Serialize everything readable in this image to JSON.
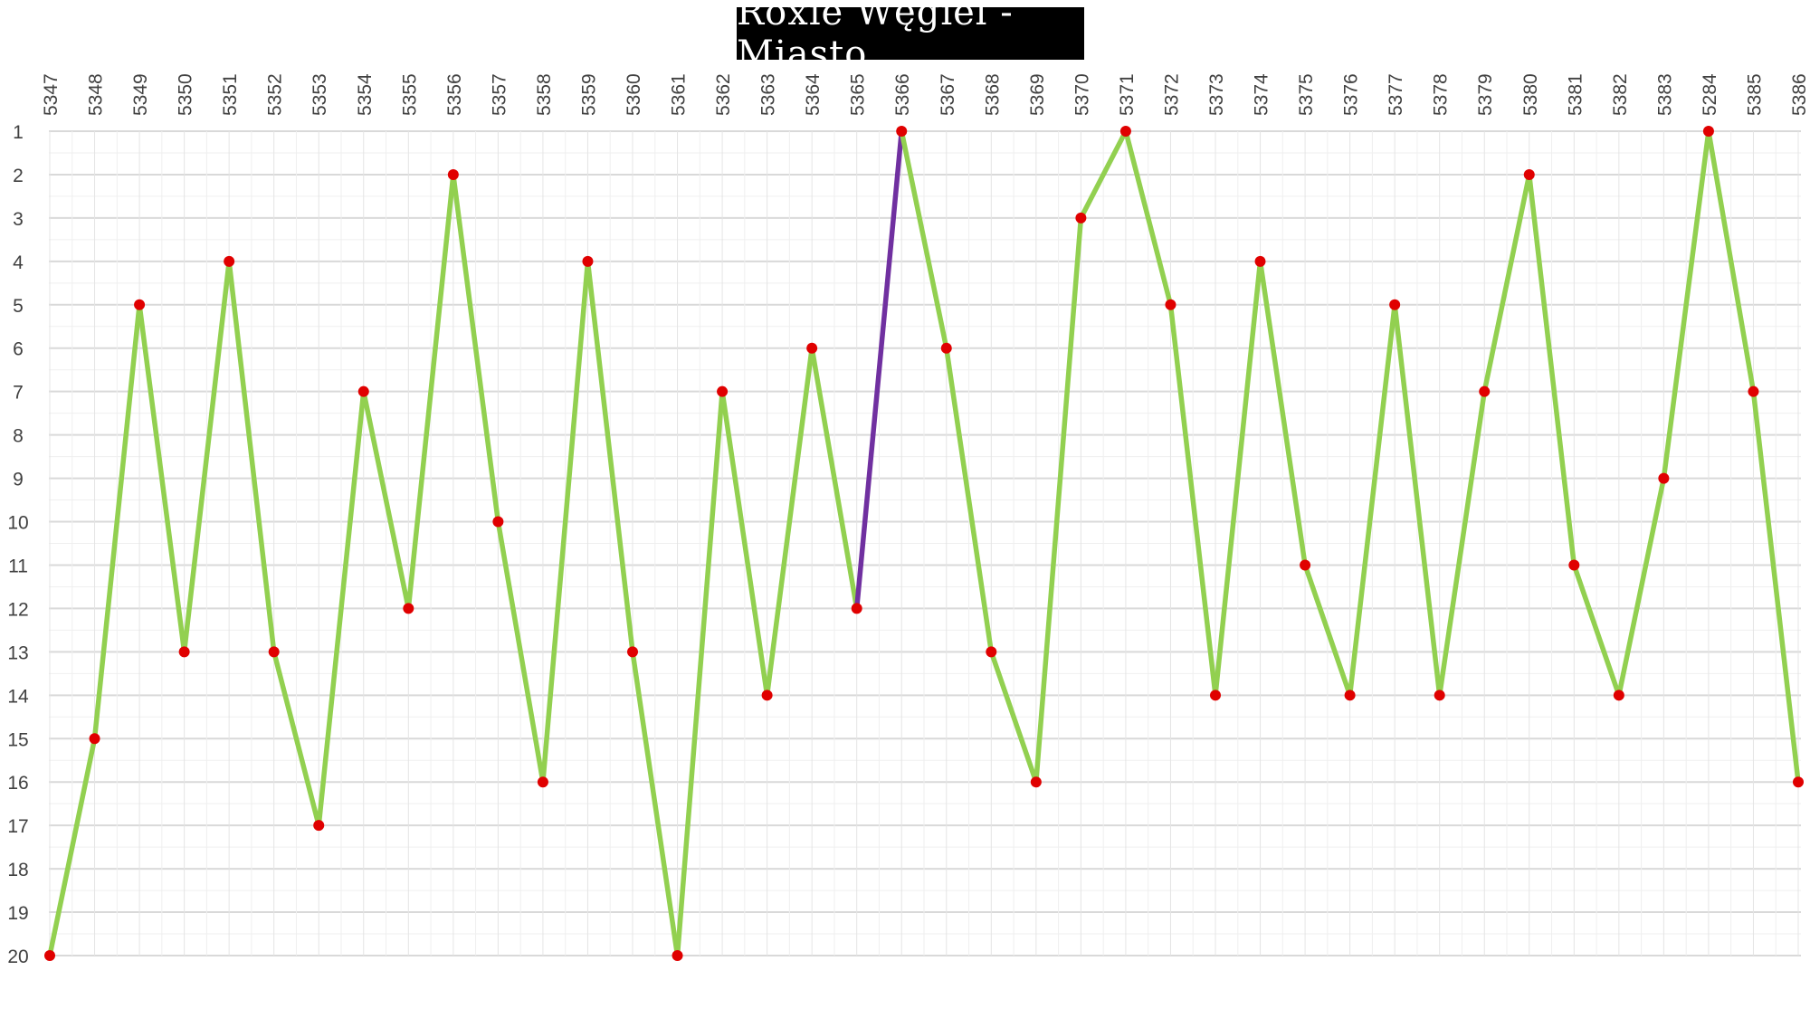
{
  "chart_data": {
    "type": "line",
    "title": "Roxie Węgiel - Miasto",
    "xlabel": "",
    "ylabel": "",
    "categories": [
      "5347",
      "5348",
      "5349",
      "5350",
      "5351",
      "5352",
      "5353",
      "5354",
      "5355",
      "5356",
      "5357",
      "5358",
      "5359",
      "5360",
      "5361",
      "5362",
      "5363",
      "5364",
      "5365",
      "5366",
      "5367",
      "5368",
      "5369",
      "5370",
      "5371",
      "5372",
      "5373",
      "5374",
      "5375",
      "5376",
      "5377",
      "5378",
      "5379",
      "5380",
      "5381",
      "5382",
      "5383",
      "5284",
      "5385",
      "5386"
    ],
    "values": [
      20,
      15,
      5,
      13,
      4,
      13,
      17,
      7,
      12,
      2,
      10,
      16,
      4,
      13,
      20,
      7,
      14,
      6,
      12,
      1,
      6,
      13,
      16,
      3,
      1,
      5,
      14,
      4,
      11,
      14,
      5,
      14,
      7,
      2,
      11,
      14,
      9,
      1,
      7,
      16
    ],
    "highlight_segment": [
      18,
      19
    ],
    "ylim": [
      1,
      20
    ],
    "y_axis_inverted": true,
    "y_ticks": [
      1,
      2,
      3,
      4,
      5,
      6,
      7,
      8,
      9,
      10,
      11,
      12,
      13,
      14,
      15,
      16,
      17,
      18,
      19,
      20
    ],
    "x_axis_position": "top",
    "grid": true,
    "colors": {
      "line": "#92d050",
      "highlight": "#7030a0",
      "marker": "#e00000",
      "grid": "#d9d9d9",
      "title_bg": "#000000",
      "title_fg": "#ffffff"
    }
  }
}
